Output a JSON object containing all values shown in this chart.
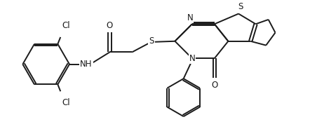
{
  "bg_color": "#ffffff",
  "line_color": "#1a1a1a",
  "line_width": 1.4,
  "font_size": 8.5,
  "figsize": [
    4.42,
    1.94
  ],
  "dpi": 100,
  "xlim": [
    0,
    8.84
  ],
  "ylim": [
    0,
    3.88
  ]
}
